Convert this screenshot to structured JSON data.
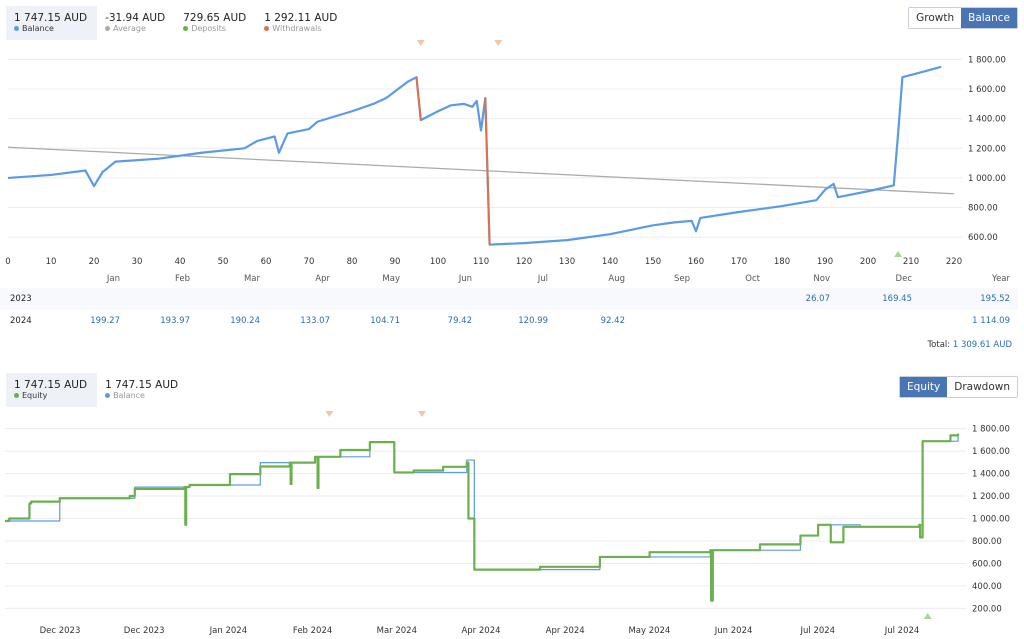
{
  "balance_legend": [
    {
      "value": "1 747.15 AUD",
      "label": "Balance",
      "color": "#5b9be6"
    },
    {
      "value": "-31.94 AUD",
      "label": "Average",
      "color": "#aaaaaa"
    },
    {
      "value": "729.65 AUD",
      "label": "Deposits",
      "color": "#6ab04c"
    },
    {
      "value": "1 292.11 AUD",
      "label": "Withdrawals",
      "color": "#e0704a"
    }
  ],
  "top_buttons": {
    "growth": "Growth",
    "balance": "Balance"
  },
  "equity_legend": [
    {
      "value": "1 747.15 AUD",
      "label": "Equity",
      "color": "#6ab04c"
    },
    {
      "value": "1 747.15 AUD",
      "label": "Balance",
      "color": "#5b9be6"
    }
  ],
  "bottom_buttons": {
    "equity": "Equity",
    "drawdown": "Drawdown"
  },
  "monthly_table": {
    "headers": [
      "Jan",
      "Feb",
      "Mar",
      "Apr",
      "May",
      "Jun",
      "Jul",
      "Aug",
      "Sep",
      "Oct",
      "Nov",
      "Dec",
      "Year"
    ],
    "rows": [
      {
        "year": "2023",
        "values": [
          "",
          "",
          "",
          "",
          "",
          "",
          "",
          "",
          "",
          "",
          "26.07",
          "169.45",
          "195.52"
        ]
      },
      {
        "year": "2024",
        "values": [
          "199.27",
          "193.97",
          "190.24",
          "133.07",
          "104.71",
          "79.42",
          "120.99",
          "92.42",
          "",
          "",
          "",
          "",
          "1 114.09"
        ]
      }
    ],
    "total_label": "Total:",
    "total_value": "1 309.61 AUD"
  },
  "chart_data": [
    {
      "type": "line",
      "title": "Balance",
      "xlim": [
        0,
        220
      ],
      "ylim": [
        500,
        1850
      ],
      "xticks": [
        "0",
        "10",
        "20",
        "30",
        "40",
        "50",
        "60",
        "70",
        "80",
        "90",
        "100",
        "110",
        "120",
        "130",
        "140",
        "150",
        "160",
        "170",
        "180",
        "190",
        "200",
        "210",
        "220"
      ],
      "yticks": [
        "600.00",
        "800.00",
        "1 000.00",
        "1 200.00",
        "1 400.00",
        "1 600.00",
        "1 800.00"
      ],
      "average": {
        "x": [
          0,
          220
        ],
        "y": [
          1207,
          893
        ]
      },
      "series": [
        {
          "name": "Balance",
          "x": [
            0,
            10,
            18,
            20,
            22,
            25,
            35,
            45,
            55,
            58,
            62,
            63,
            65,
            70,
            72,
            80,
            85,
            88,
            93,
            95,
            96,
            100,
            103,
            106,
            108,
            109,
            110,
            111,
            112,
            120,
            130,
            140,
            150,
            155,
            159,
            160,
            161,
            170,
            180,
            188,
            190,
            192,
            193,
            200,
            206,
            207,
            208,
            212,
            217
          ],
          "y": [
            1000,
            1020,
            1050,
            945,
            1040,
            1110,
            1130,
            1170,
            1200,
            1250,
            1280,
            1170,
            1300,
            1330,
            1380,
            1450,
            1500,
            1540,
            1650,
            1680,
            1390,
            1450,
            1490,
            1500,
            1480,
            1520,
            1320,
            1540,
            550,
            560,
            580,
            620,
            680,
            700,
            710,
            640,
            730,
            770,
            810,
            850,
            920,
            960,
            870,
            910,
            950,
            1300,
            1680,
            1710,
            1750
          ]
        }
      ],
      "withdrawal_segments": [
        [
          95,
          96
        ],
        [
          111,
          112
        ]
      ],
      "withdrawal_markers": [
        96,
        114
      ],
      "deposit_markers": [
        207
      ]
    },
    {
      "type": "line",
      "title": "Equity",
      "xlim": [
        0.35,
        11.66
      ],
      "ylim": [
        150,
        1850
      ],
      "xticks": [
        "Dec 2023",
        "Dec 2023",
        "Jan 2024",
        "Feb 2024",
        "Mar 2024",
        "Apr 2024",
        "Apr 2024",
        "May 2024",
        "Jun 2024",
        "Jul 2024",
        "Jul 2024"
      ],
      "yticks": [
        "200.00",
        "400.00",
        "600.00",
        "800.00",
        "1 000.00",
        "1 200.00",
        "1 400.00",
        "1 600.00",
        "1 800.00"
      ],
      "series": [
        {
          "name": "Equity",
          "x": [
            0.35,
            0.4,
            0.64,
            0.66,
            1,
            1.83,
            1.89,
            2.48,
            2.49,
            2.5,
            2.54,
            3.02,
            3.38,
            3.73,
            3.74,
            3.75,
            4.03,
            4.06,
            4.07,
            4.33,
            4.68,
            4.96,
            4.97,
            5.2,
            5.55,
            5.83,
            5.85,
            5.92,
            6.7,
            7.41,
            8.0,
            8.72,
            8.73,
            8.75,
            9.31,
            9.79,
            10.0,
            10.15,
            10.3,
            10.5,
            11.2,
            11.21,
            11.24,
            11.57,
            11.66
          ],
          "y": [
            978,
            1000,
            1134,
            1150,
            1180,
            1200,
            1264,
            1280,
            944,
            1280,
            1298,
            1395,
            1463,
            1497,
            1307,
            1497,
            1549,
            1272,
            1549,
            1610,
            1680,
            1680,
            1410,
            1427,
            1460,
            1497,
            1000,
            545,
            570,
            658,
            700,
            718,
            269,
            718,
            770,
            848,
            944,
            788,
            926,
            926,
            944,
            832,
            1688,
            1740,
            1757
          ]
        },
        {
          "name": "Balance",
          "x": [
            0.35,
            1,
            1.89,
            2.54,
            3.38,
            4.03,
            4.68,
            4.97,
            5.83,
            5.92,
            7.41,
            8.72,
            9.79,
            10.0,
            10.5,
            11.2,
            11.24,
            11.66
          ],
          "y": [
            978,
            1180,
            1280,
            1298,
            1497,
            1549,
            1680,
            1410,
            1520,
            545,
            658,
            718,
            848,
            944,
            926,
            944,
            1688,
            1757
          ]
        }
      ],
      "withdrawal_markers": [
        4.2,
        5.3
      ],
      "deposit_markers": [
        11.3
      ]
    }
  ]
}
